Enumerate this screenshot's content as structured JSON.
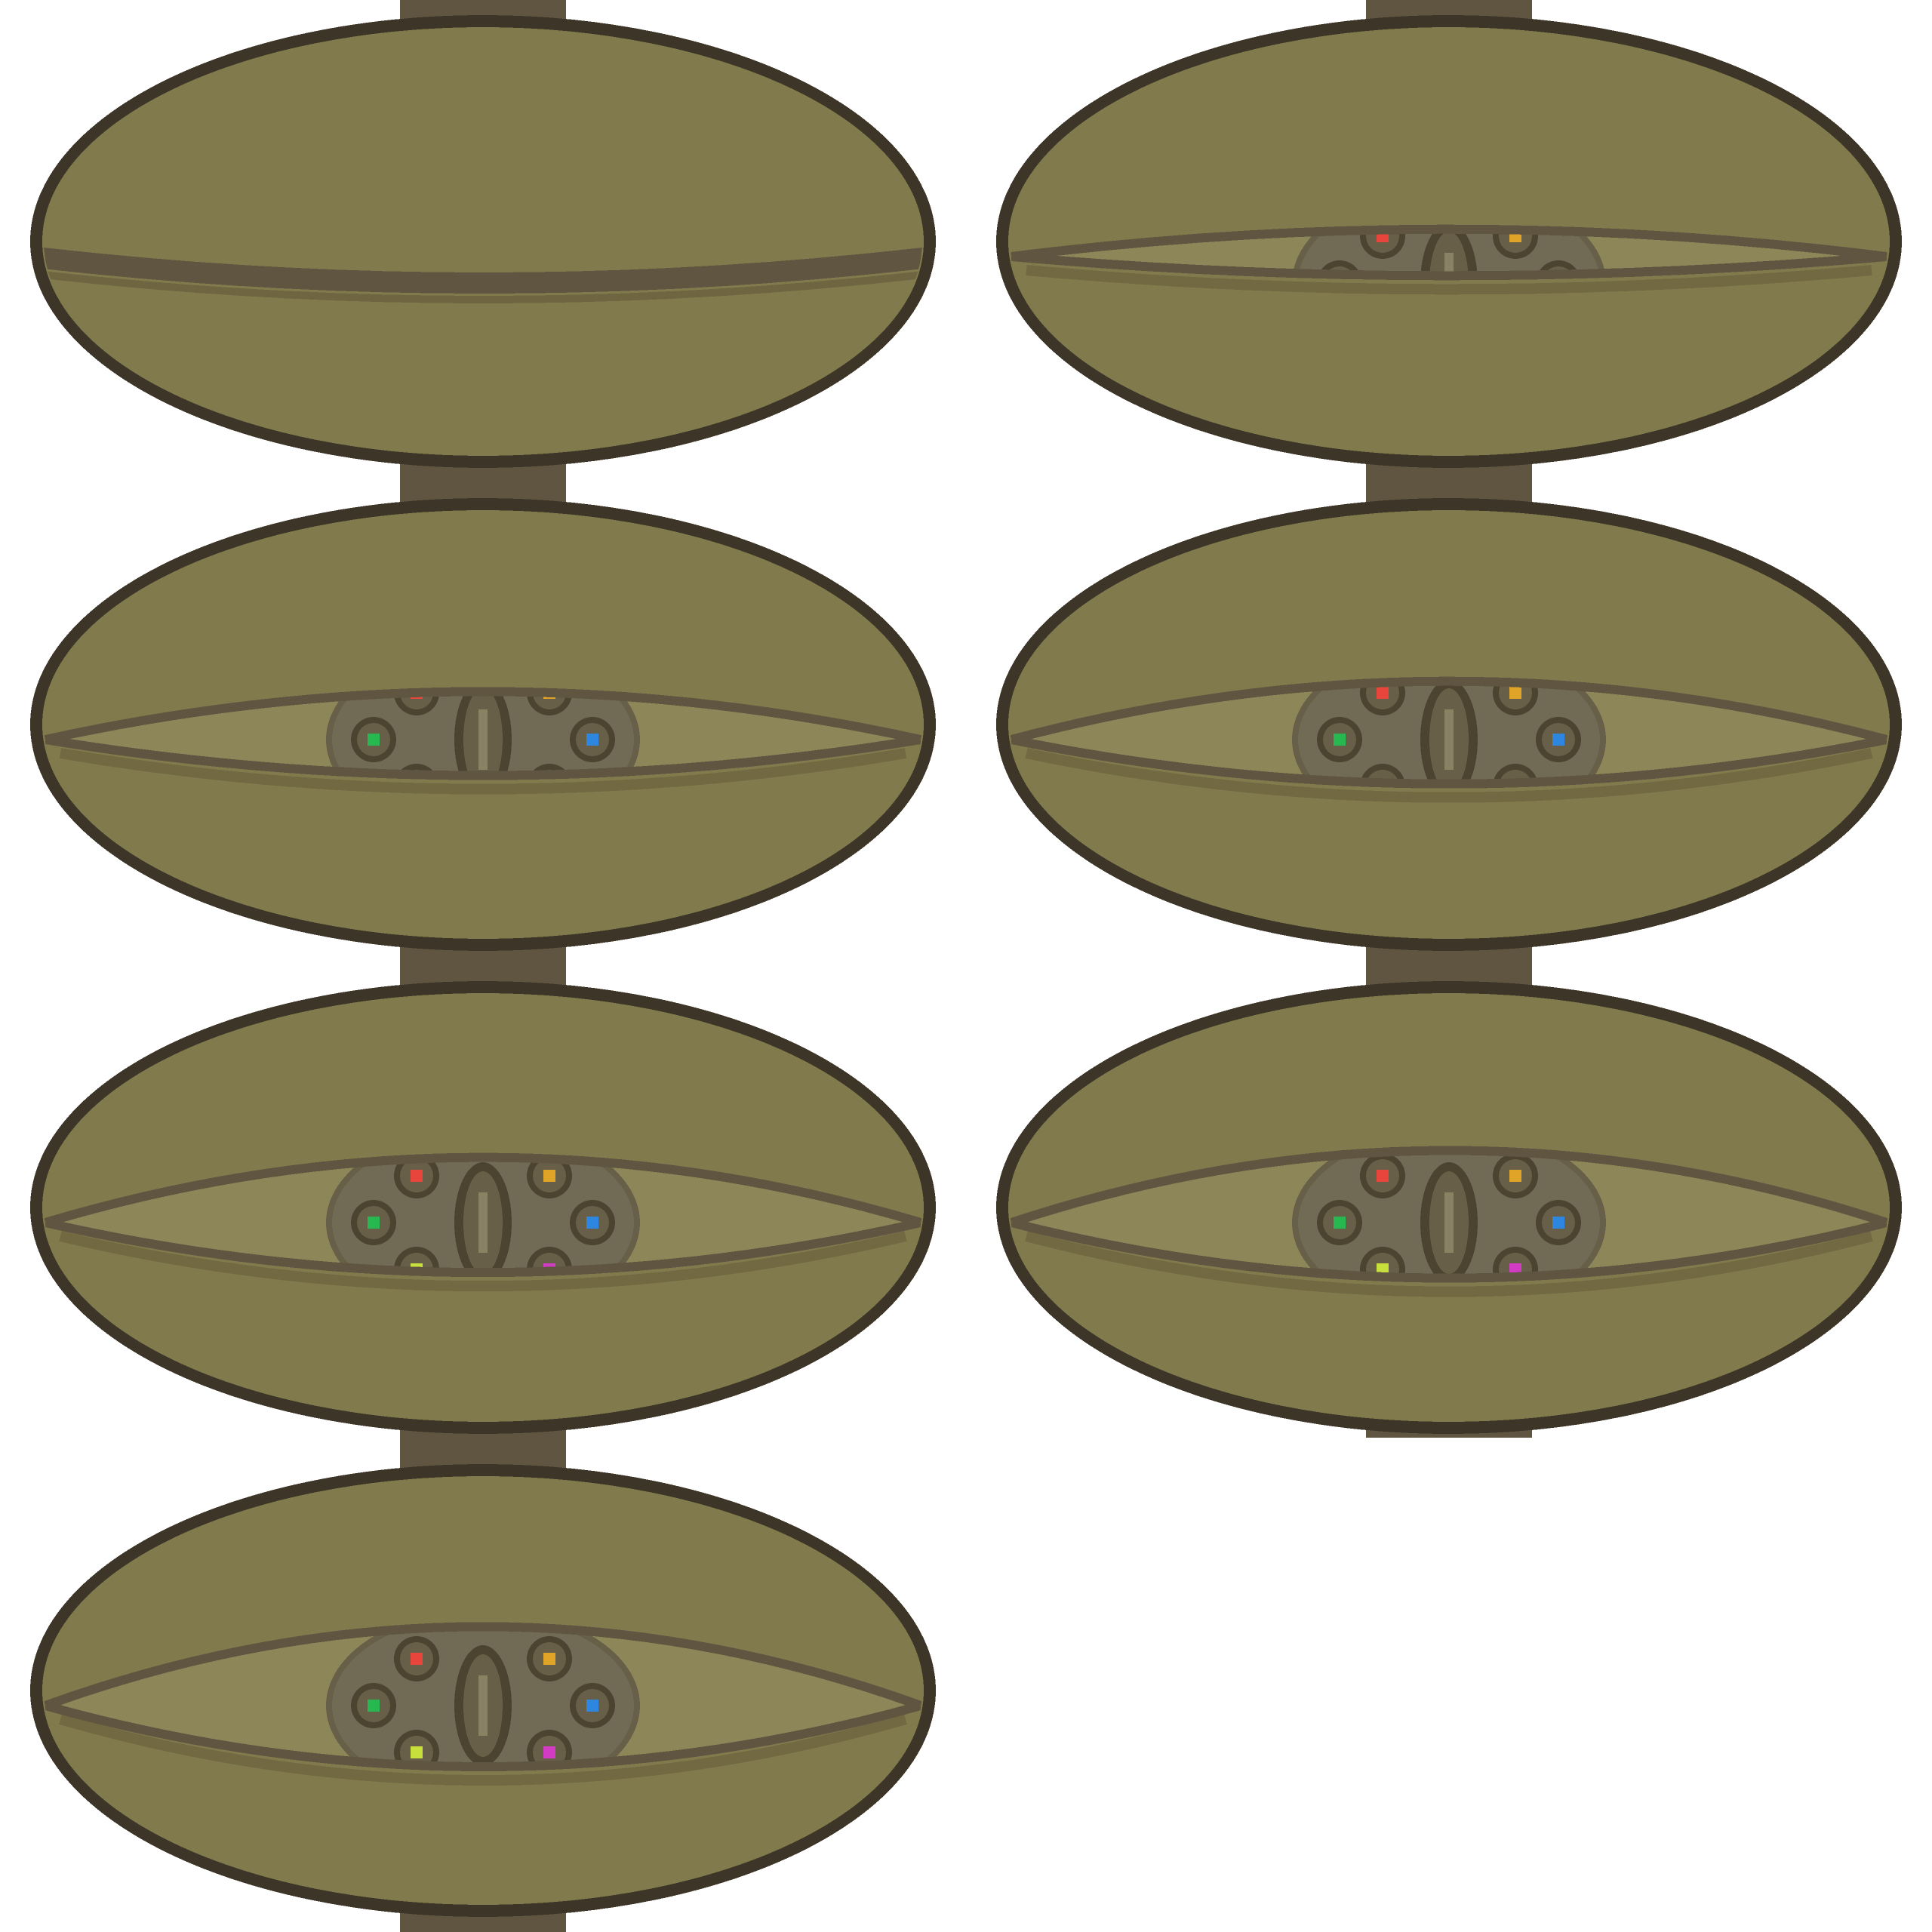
{
  "sprite_sheet": {
    "title": "",
    "frame_count": 7,
    "frames": [
      {
        "id": "frame-1",
        "eye_open": 0.0
      },
      {
        "id": "frame-2",
        "eye_open": 0.25
      },
      {
        "id": "frame-3",
        "eye_open": 0.55
      },
      {
        "id": "frame-4",
        "eye_open": 0.7
      },
      {
        "id": "frame-5",
        "eye_open": 0.8
      },
      {
        "id": "frame-6",
        "eye_open": 0.9
      },
      {
        "id": "frame-7",
        "eye_open": 1.0
      }
    ],
    "colors": {
      "outline": "#3d3527",
      "shell": "#807a4c",
      "shell_shadow": "#615539",
      "lid_line": "#5f5541",
      "eye_white": "#8d8658",
      "iris_body": "#716a55",
      "iris_rim": "#675f47",
      "pupil": "#4c4331",
      "pupil_highlight": "#8b8164"
    },
    "gems": [
      {
        "name": "red-gem",
        "color": "#e8463c"
      },
      {
        "name": "orange-gem",
        "color": "#e0a428"
      },
      {
        "name": "green-gem",
        "color": "#27b84f"
      },
      {
        "name": "blue-gem",
        "color": "#2f86e0"
      },
      {
        "name": "yellow-gem",
        "color": "#c8e03c"
      },
      {
        "name": "magenta-gem",
        "color": "#d23cc4"
      }
    ]
  }
}
